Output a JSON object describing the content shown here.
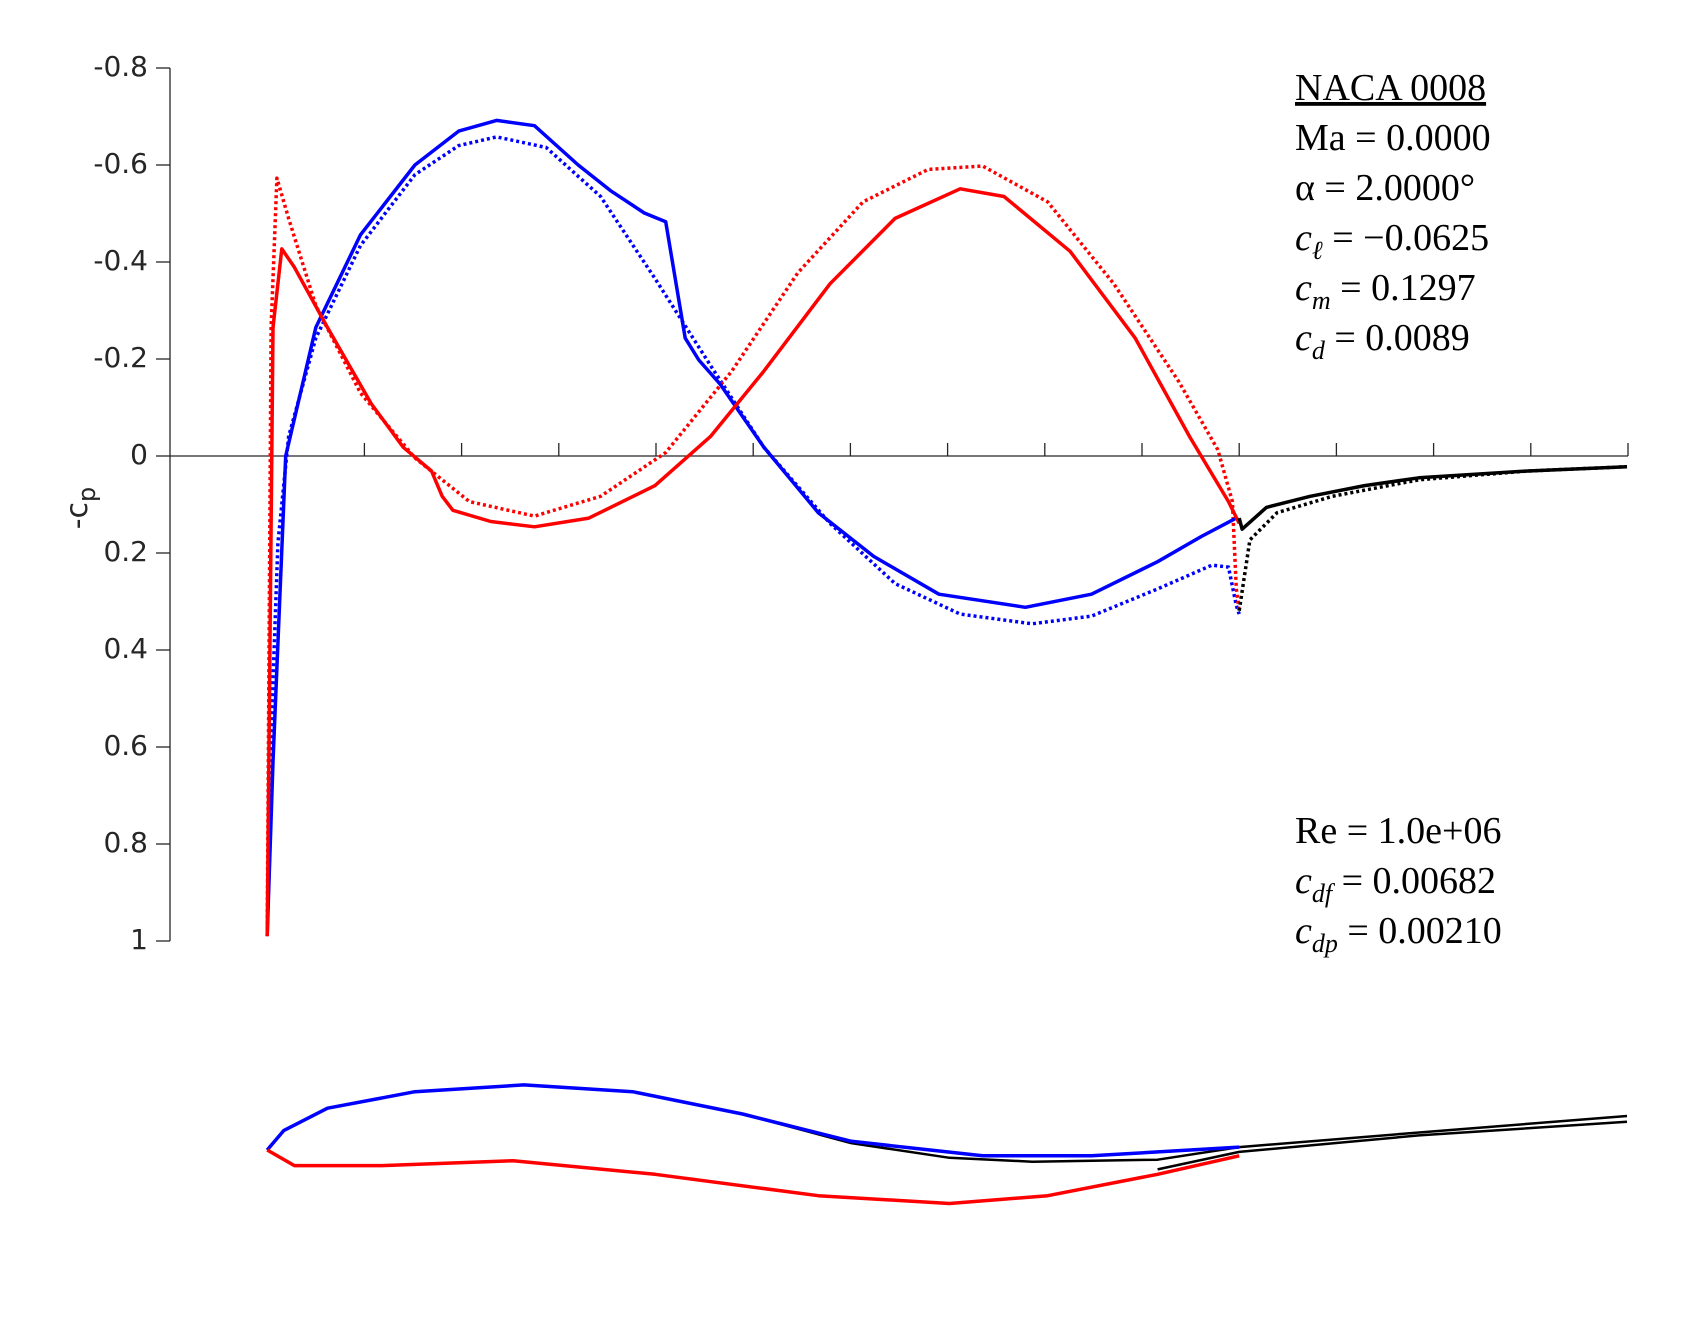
{
  "chart_data": {
    "type": "line",
    "ylabel": "-c",
    "ylabel_sub": "p",
    "xlim": [
      -0.1,
      1.4
    ],
    "xticks": [
      0.1,
      0.2,
      0.3,
      0.4,
      0.5,
      0.6,
      0.7,
      0.8,
      0.9,
      1.0,
      1.1,
      1.2,
      1.3,
      1.4
    ],
    "ylim": [
      1,
      -0.8
    ],
    "yticks": [
      -0.8,
      -0.6,
      -0.4,
      -0.2,
      0,
      0.2,
      0.4,
      0.6,
      0.8,
      1
    ],
    "series": [
      {
        "color": "#0000ff",
        "dash": true,
        "x": [
          0,
          0.003,
          0.011,
          0.022,
          0.05,
          0.096,
          0.152,
          0.197,
          0.236,
          0.287,
          0.343,
          0.399,
          0.456,
          0.511,
          0.579,
          0.646,
          0.713,
          0.787,
          0.848,
          0.916,
          0.972,
          0.989,
          0.997,
          1.0
        ],
        "values": [
          0.99,
          0.63,
          0.18,
          -0.04,
          -0.243,
          -0.434,
          -0.58,
          -0.64,
          -0.658,
          -0.636,
          -0.535,
          -0.366,
          -0.187,
          -0.018,
          0.139,
          0.263,
          0.326,
          0.346,
          0.33,
          0.274,
          0.225,
          0.229,
          0.308,
          0.326
        ]
      },
      {
        "color": "#ff0000",
        "dash": true,
        "x": [
          0,
          0.004,
          0.01,
          0.022,
          0.05,
          0.096,
          0.152,
          0.208,
          0.275,
          0.343,
          0.41,
          0.478,
          0.546,
          0.613,
          0.68,
          0.736,
          0.803,
          0.871,
          0.938,
          0.978,
          0.993,
          0.997,
          1.0
        ],
        "values": [
          0.99,
          -0.265,
          -0.573,
          -0.49,
          -0.31,
          -0.13,
          0.004,
          0.094,
          0.124,
          0.083,
          -0.007,
          -0.175,
          -0.378,
          -0.524,
          -0.591,
          -0.598,
          -0.524,
          -0.355,
          -0.153,
          -0.013,
          0.094,
          0.274,
          0.319
        ]
      },
      {
        "color": "#000000",
        "dash": true,
        "x": [
          1.0,
          1.011,
          1.039,
          1.096,
          1.185,
          1.297,
          1.399
        ],
        "values": [
          0.319,
          0.173,
          0.117,
          0.083,
          0.049,
          0.031,
          0.022
        ]
      },
      {
        "color": "#0000ff",
        "dash": false,
        "x": [
          0,
          0.006,
          0.019,
          0.05,
          0.096,
          0.152,
          0.197,
          0.236,
          0.275,
          0.32,
          0.354,
          0.388,
          0.41,
          0.43,
          0.444,
          0.466,
          0.511,
          0.567,
          0.624,
          0.691,
          0.78,
          0.848,
          0.916,
          0.961,
          0.997
        ],
        "values": [
          0.99,
          0.63,
          0.0,
          -0.265,
          -0.456,
          -0.6,
          -0.67,
          -0.692,
          -0.681,
          -0.6,
          -0.546,
          -0.501,
          -0.483,
          -0.243,
          -0.198,
          -0.148,
          -0.018,
          0.117,
          0.207,
          0.285,
          0.312,
          0.285,
          0.218,
          0.166,
          0.128
        ]
      },
      {
        "color": "#ff0000",
        "dash": false,
        "x": [
          0,
          0.006,
          0.015,
          0.028,
          0.062,
          0.107,
          0.14,
          0.169,
          0.18,
          0.191,
          0.23,
          0.275,
          0.331,
          0.399,
          0.456,
          0.511,
          0.579,
          0.646,
          0.713,
          0.758,
          0.826,
          0.893,
          0.949,
          0.989,
          1.0
        ],
        "values": [
          0.99,
          -0.265,
          -0.427,
          -0.389,
          -0.265,
          -0.108,
          -0.018,
          0.031,
          0.083,
          0.112,
          0.135,
          0.146,
          0.128,
          0.061,
          -0.04,
          -0.175,
          -0.355,
          -0.49,
          -0.551,
          -0.535,
          -0.422,
          -0.243,
          -0.04,
          0.094,
          0.139
        ]
      },
      {
        "color": "#000000",
        "dash": false,
        "x": [
          1.0,
          1.003,
          1.028,
          1.073,
          1.129,
          1.185,
          1.297,
          1.399
        ],
        "values": [
          0.128,
          0.151,
          0.106,
          0.083,
          0.061,
          0.045,
          0.031,
          0.022
        ]
      }
    ],
    "geometry": [
      {
        "color": "#000000",
        "x": [
          0,
          0.017,
          0.062,
          0.152,
          0.264,
          0.376,
          0.489,
          0.601,
          0.702,
          0.787,
          0.916,
          1.0
        ],
        "values": [
          0,
          0.02,
          0.043,
          0.06,
          0.067,
          0.06,
          0.037,
          0.007,
          -0.008,
          -0.012,
          -0.01,
          0.003
        ]
      },
      {
        "color": "#000000",
        "x": [
          1.0,
          1.185,
          1.399
        ],
        "values": [
          0.003,
          0.018,
          0.035
        ]
      },
      {
        "color": "#000000",
        "x": [
          0.916,
          1.0,
          1.185,
          1.399
        ],
        "values": [
          -0.02,
          -0.002,
          0.015,
          0.029
        ]
      },
      {
        "color": "#0000ff",
        "x": [
          0,
          0.017,
          0.062,
          0.152,
          0.264,
          0.376,
          0.489,
          0.601,
          0.736,
          0.848,
          1.0
        ],
        "values": [
          0,
          0.02,
          0.043,
          0.06,
          0.067,
          0.06,
          0.037,
          0.009,
          -0.006,
          -0.006,
          0.003
        ]
      },
      {
        "color": "#ff0000",
        "x": [
          0,
          0.028,
          0.118,
          0.253,
          0.399,
          0.567,
          0.702,
          0.803,
          0.916,
          1.0
        ],
        "values": [
          0,
          -0.016,
          -0.016,
          -0.011,
          -0.025,
          -0.047,
          -0.055,
          -0.047,
          -0.025,
          -0.006
        ]
      }
    ],
    "annotations": [
      {
        "text": "NACA 0008",
        "underline": true
      },
      {
        "text": "Ma = 0.0000"
      },
      {
        "text": "α = 2.0000°"
      },
      {
        "symbol": "c",
        "sub": "ℓ",
        "text": " = −0.0625"
      },
      {
        "symbol": "c",
        "sub": "m",
        "text": " = 0.1297"
      },
      {
        "symbol": "c",
        "sub": "d",
        "text": " = 0.0089"
      }
    ],
    "viscous_annotations": [
      {
        "text": "Re = 1.0e+06"
      },
      {
        "symbol": "c",
        "sub": "df",
        "text": " = 0.00682"
      },
      {
        "symbol": "c",
        "sub": "dp",
        "text": " = 0.00210"
      }
    ]
  }
}
